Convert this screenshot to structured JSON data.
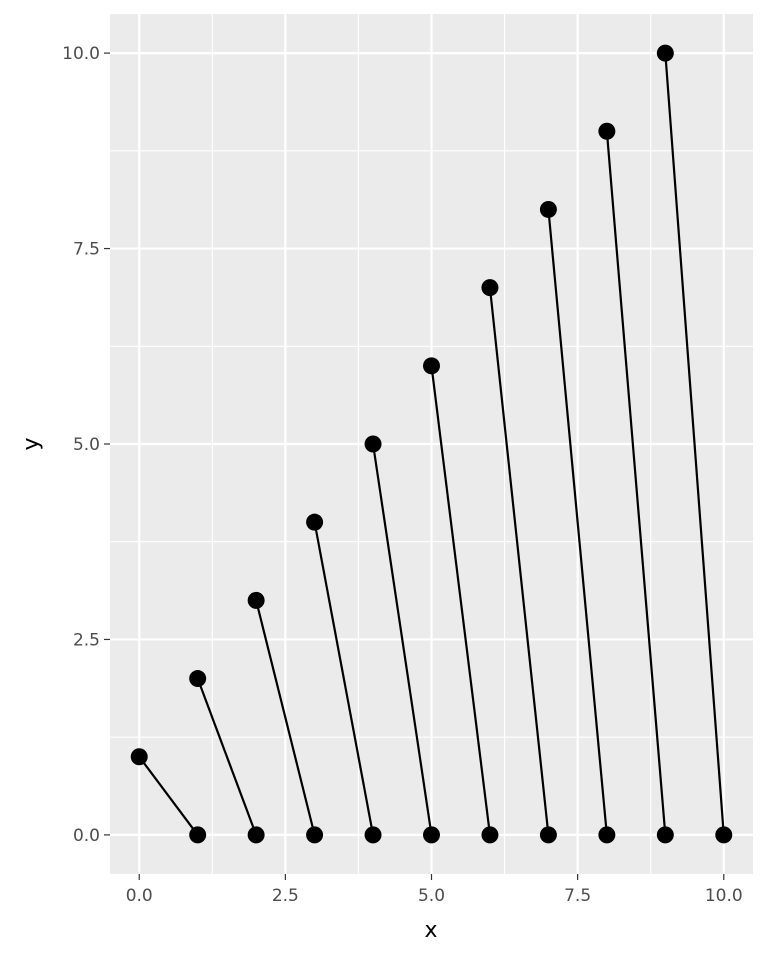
{
  "chart_data": {
    "type": "scatter",
    "xlabel": "x",
    "ylabel": "y",
    "xlim": [
      -0.5,
      10.5
    ],
    "ylim": [
      -0.5,
      10.5
    ],
    "x_ticks": [
      0.0,
      2.5,
      5.0,
      7.5,
      10.0
    ],
    "y_ticks": [
      0.0,
      2.5,
      5.0,
      7.5,
      10.0
    ],
    "x_tick_labels": [
      "0.0",
      "2.5",
      "5.0",
      "7.5",
      "10.0"
    ],
    "y_tick_labels": [
      "0.0",
      "2.5",
      "5.0",
      "7.5",
      "10.0"
    ],
    "grid": true,
    "points": [
      {
        "x": 0,
        "y": 1
      },
      {
        "x": 1,
        "y": 2
      },
      {
        "x": 2,
        "y": 3
      },
      {
        "x": 3,
        "y": 4
      },
      {
        "x": 4,
        "y": 5
      },
      {
        "x": 5,
        "y": 6
      },
      {
        "x": 6,
        "y": 7
      },
      {
        "x": 7,
        "y": 8
      },
      {
        "x": 8,
        "y": 9
      },
      {
        "x": 9,
        "y": 10
      },
      {
        "x": 1,
        "y": 0
      },
      {
        "x": 2,
        "y": 0
      },
      {
        "x": 3,
        "y": 0
      },
      {
        "x": 4,
        "y": 0
      },
      {
        "x": 5,
        "y": 0
      },
      {
        "x": 6,
        "y": 0
      },
      {
        "x": 7,
        "y": 0
      },
      {
        "x": 8,
        "y": 0
      },
      {
        "x": 9,
        "y": 0
      },
      {
        "x": 10,
        "y": 0
      }
    ],
    "segments": [
      {
        "x1": 0,
        "y1": 1,
        "x2": 1,
        "y2": 0
      },
      {
        "x1": 1,
        "y1": 2,
        "x2": 2,
        "y2": 0
      },
      {
        "x1": 2,
        "y1": 3,
        "x2": 3,
        "y2": 0
      },
      {
        "x1": 3,
        "y1": 4,
        "x2": 4,
        "y2": 0
      },
      {
        "x1": 4,
        "y1": 5,
        "x2": 5,
        "y2": 0
      },
      {
        "x1": 5,
        "y1": 6,
        "x2": 6,
        "y2": 0
      },
      {
        "x1": 6,
        "y1": 7,
        "x2": 7,
        "y2": 0
      },
      {
        "x1": 7,
        "y1": 8,
        "x2": 8,
        "y2": 0
      },
      {
        "x1": 8,
        "y1": 9,
        "x2": 9,
        "y2": 0
      },
      {
        "x1": 9,
        "y1": 10,
        "x2": 10,
        "y2": 0
      }
    ],
    "colors": {
      "panel": "#ebebeb",
      "grid": "#ffffff",
      "mark": "#000000"
    }
  }
}
